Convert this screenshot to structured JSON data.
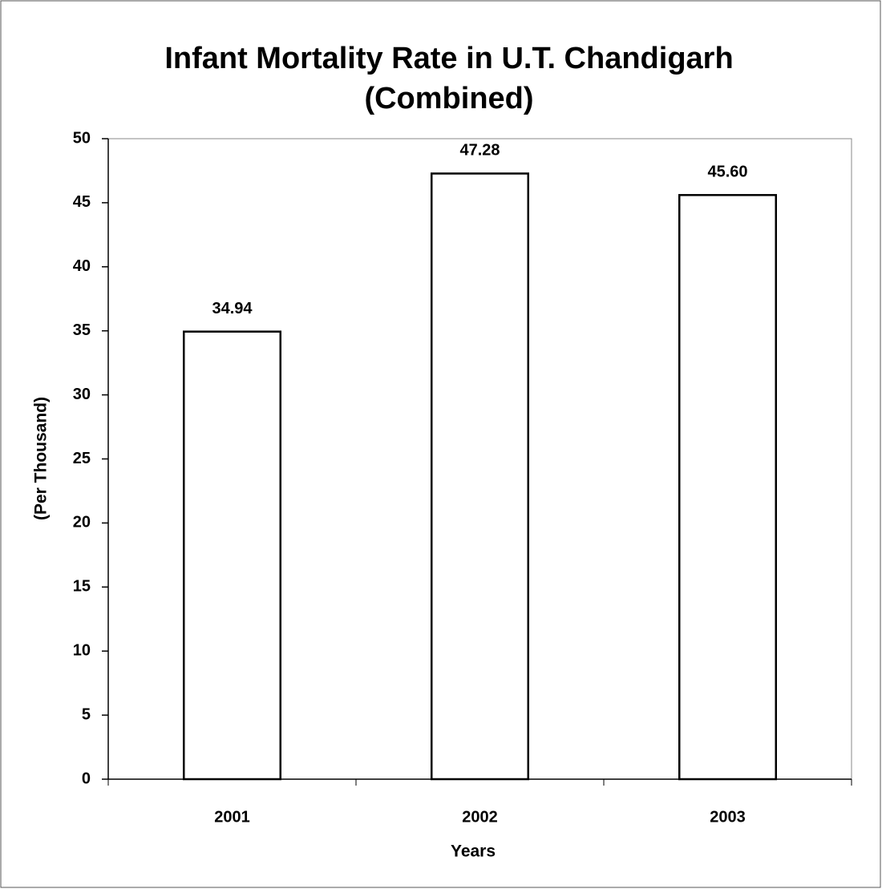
{
  "chart_data": {
    "type": "bar",
    "title": [
      "Infant Mortality Rate in U.T. Chandigarh",
      "(Combined)"
    ],
    "x_label": "Years",
    "y_label": "(Per Thousand)",
    "categories": [
      "2001",
      "2002",
      "2003"
    ],
    "values": [
      34.94,
      47.28,
      45.6
    ],
    "value_labels": [
      "34.94",
      "47.28",
      "45.60"
    ],
    "color": "#ffffff",
    "ylim": [
      0,
      50
    ],
    "yticks": [
      0,
      5,
      10,
      15,
      20,
      25,
      30,
      35,
      40,
      45,
      50
    ],
    "grid": false
  }
}
